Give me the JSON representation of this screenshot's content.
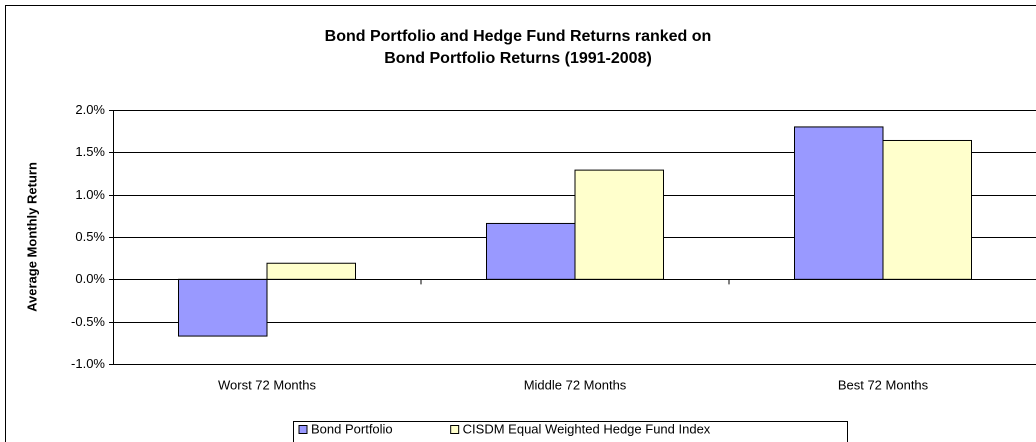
{
  "chart_data": {
    "type": "bar",
    "title": [
      "Bond Portfolio and Hedge Fund Returns ranked on",
      "Bond Portfolio Returns (1991-2008)"
    ],
    "y_label": "Average Monthly Return",
    "categories": [
      "Worst 72 Months",
      "Middle 72 Months",
      "Best 72 Months"
    ],
    "series": [
      {
        "name": "Bond Portfolio",
        "color": "#9999ff",
        "values": [
          -0.67,
          0.66,
          1.8
        ]
      },
      {
        "name": "CISDM Equal Weighted Hedge Fund Index",
        "color": "#ffffcc",
        "values": [
          0.19,
          1.29,
          1.64
        ]
      }
    ],
    "ylim": [
      -1,
      2
    ],
    "yticks": [
      {
        "value": -1,
        "label": "-1.0%"
      },
      {
        "value": -0.5,
        "label": "-0.5%"
      },
      {
        "value": 0,
        "label": "0.0%"
      },
      {
        "value": 0.5,
        "label": "0.5%"
      },
      {
        "value": 1,
        "label": "1.0%"
      },
      {
        "value": 1.5,
        "label": "1.5%"
      },
      {
        "value": 2,
        "label": "2.0%"
      }
    ],
    "grid": true,
    "legend": "bottom"
  }
}
